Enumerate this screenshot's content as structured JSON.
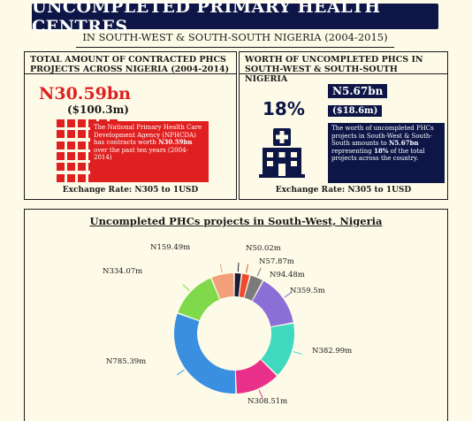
{
  "header": {
    "title": "UNCOMPLETED PRIMARY HEALTH CENTRES",
    "subtitle": "IN SOUTH-WEST & SOUTH-SOUTH NIGERIA (2004-2015)"
  },
  "left_panel": {
    "heading": "TOTAL AMOUNT OF CONTRACTED PHCs PROJECTS ACROSS NIGERIA (2004-2014)",
    "amount": "N30.59bn",
    "amount_usd": "($100.3m)",
    "note_1": "The National Primary Health Care Development Agency (NPHCDA) has contracts worth ",
    "note_bold": "N30.59bn",
    "note_2": " over the past ten years (2004-2014)",
    "exchange_rate": "Exchange Rate: N305 to 1USD",
    "icon": "building-grid-icon",
    "accent": "#e02020"
  },
  "right_panel": {
    "heading": "WORTH OF UNCOMPLETED PHCs IN SOUTH-WEST & SOUTH-SOUTH NIGERIA",
    "percent": "18%",
    "amount": "N5.67bn",
    "amount_usd": "($18.6m)",
    "note_1": "The worth of uncompleted PHCs projects in South-West & South-South amounts to ",
    "note_bold_1": "N5.67bn",
    "note_2": " representing ",
    "note_bold_2": "18%",
    "note_3": " of the total projects across the country.",
    "exchange_rate": "Exchange Rate: N305 to 1USD",
    "icon": "hospital-icon",
    "accent": "#0d1646"
  },
  "chart_data": {
    "type": "pie",
    "title": "Uncompleted PHCs projects in South-West, Nigeria",
    "donut": true,
    "slices": [
      {
        "label": "N50.02m",
        "value": 50.02,
        "color": "#1a1a3a"
      },
      {
        "label": "N57.87m",
        "value": 57.87,
        "color": "#f04a2c"
      },
      {
        "label": "N94.48m",
        "value": 94.48,
        "color": "#7a7a7a"
      },
      {
        "label": "N359.5m",
        "value": 359.5,
        "color": "#8c6fd6"
      },
      {
        "label": "N382.99m",
        "value": 382.99,
        "color": "#3fd9c0"
      },
      {
        "label": "N308.51m",
        "value": 308.51,
        "color": "#e8308a"
      },
      {
        "label": "N785.39m",
        "value": 785.39,
        "color": "#3a8fe0"
      },
      {
        "label": "N334.07m",
        "value": 334.07,
        "color": "#7fd94a"
      },
      {
        "label": "N159.49m",
        "value": 159.49,
        "color": "#f2a07a"
      }
    ]
  }
}
